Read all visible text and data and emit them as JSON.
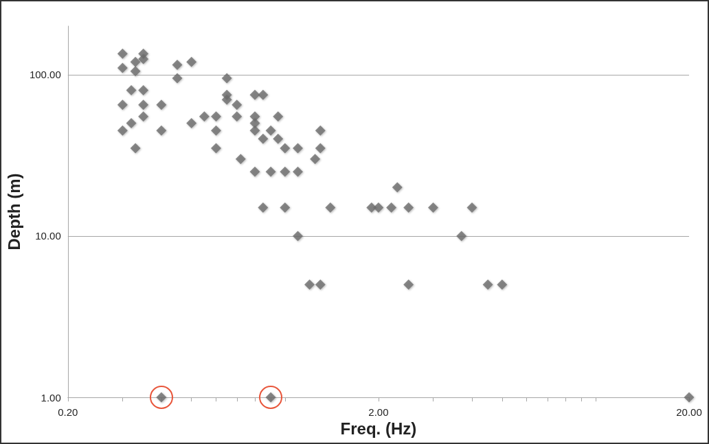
{
  "chart_data": {
    "type": "scatter",
    "xlabel": "Freq. (Hz)",
    "ylabel": "Depth (m)",
    "log": "xy",
    "marker": "diamond",
    "grid": "y",
    "xlim": [
      0.2,
      20
    ],
    "ylim": [
      1,
      200
    ],
    "xticks": [
      {
        "value": 0.2,
        "label": "0.20"
      },
      {
        "value": 0.3,
        "label": null
      },
      {
        "value": 0.4,
        "label": null
      },
      {
        "value": 0.5,
        "label": null
      },
      {
        "value": 0.6,
        "label": null
      },
      {
        "value": 0.7,
        "label": null
      },
      {
        "value": 0.8,
        "label": null
      },
      {
        "value": 0.9,
        "label": null
      },
      {
        "value": 1,
        "label": null
      },
      {
        "value": 2,
        "label": "2.00"
      },
      {
        "value": 3,
        "label": null
      },
      {
        "value": 4,
        "label": null
      },
      {
        "value": 5,
        "label": null
      },
      {
        "value": 6,
        "label": null
      },
      {
        "value": 7,
        "label": null
      },
      {
        "value": 8,
        "label": null
      },
      {
        "value": 9,
        "label": null
      },
      {
        "value": 10,
        "label": null
      },
      {
        "value": 20,
        "label": "20.00"
      }
    ],
    "yticks": [
      {
        "value": 1,
        "label": "1.00"
      },
      {
        "value": 10,
        "label": "10.00"
      },
      {
        "value": 100,
        "label": "100.00"
      }
    ],
    "series": [
      {
        "color": "#6d6d6d",
        "x": [
          0.3,
          0.3,
          0.35,
          0.35,
          0.33,
          0.33,
          0.45,
          0.5,
          0.45,
          0.65,
          0.32,
          0.35,
          0.65,
          0.65,
          0.7,
          0.3,
          0.35,
          0.4,
          0.35,
          0.32,
          0.55,
          0.6,
          0.7,
          0.5,
          0.3,
          0.4,
          0.6,
          0.33,
          0.6,
          0.8,
          0.85,
          0.8,
          0.8,
          0.8,
          0.95,
          0.9,
          0.85,
          0.95,
          1.0,
          1.1,
          1.3,
          1.3,
          1.25,
          0.72,
          0.8,
          0.9,
          1.0,
          1.1,
          0.85,
          1.0,
          1.4,
          1.9,
          2.0,
          2.2,
          2.5,
          3.0,
          4.0,
          2.3,
          1.1,
          3.7,
          1.2,
          1.3,
          2.5,
          4.5,
          5.0,
          20
        ],
        "values": [
          135,
          110,
          135,
          125,
          120,
          105,
          115,
          120,
          95,
          95,
          80,
          80,
          75,
          70,
          65,
          65,
          65,
          65,
          55,
          50,
          55,
          55,
          55,
          50,
          45,
          45,
          45,
          35,
          35,
          75,
          75,
          55,
          50,
          45,
          55,
          45,
          40,
          40,
          35,
          35,
          45,
          35,
          30,
          30,
          25,
          25,
          25,
          25,
          15,
          15,
          15,
          15,
          15,
          15,
          15,
          15,
          15,
          20,
          10,
          10,
          5,
          5,
          5,
          5,
          5,
          1
        ]
      },
      {
        "color": "#6d6d6d",
        "x": [
          0.4,
          0.9
        ],
        "values": [
          1,
          1
        ]
      }
    ]
  }
}
